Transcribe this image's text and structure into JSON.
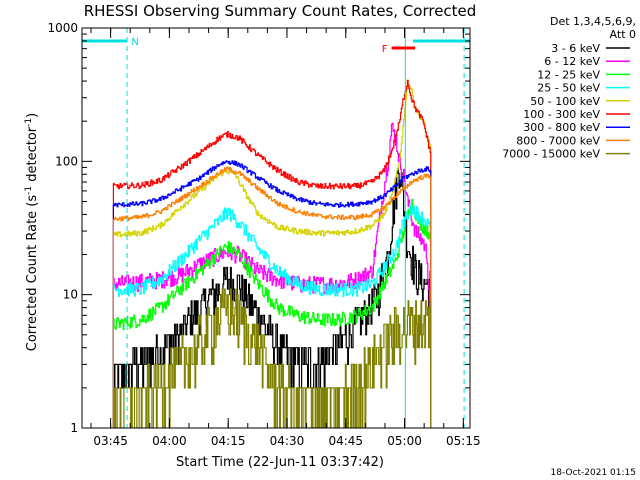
{
  "chart_data": {
    "type": "line",
    "title": "RHESSI Observing Summary Count Rates, Corrected",
    "xlabel": "Start Time (22-Jun-11 03:37:42)",
    "ylabel_main": "Corrected Count Rate (s",
    "ylabel_sup1": "-1",
    "ylabel_mid": " detector",
    "ylabel_sup2": "-1",
    "ylabel_end": ")",
    "yscale": "log",
    "ylim": [
      1,
      1000
    ],
    "xlim_minutes": [
      0,
      99
    ],
    "x_ticks": [
      {
        "label": "03:45",
        "minute": 7.3
      },
      {
        "label": "04:00",
        "minute": 22.3
      },
      {
        "label": "04:15",
        "minute": 37.3
      },
      {
        "label": "04:30",
        "minute": 52.3
      },
      {
        "label": "04:45",
        "minute": 67.3
      },
      {
        "label": "05:00",
        "minute": 82.3
      },
      {
        "label": "05:15",
        "minute": 97.3
      }
    ],
    "y_ticks": [
      {
        "label": "1",
        "value": 1
      },
      {
        "label": "10",
        "value": 10
      },
      {
        "label": "100",
        "value": 100
      },
      {
        "label": "1000",
        "value": 1000
      }
    ],
    "legend_header": [
      "Det 1,3,4,5,6,9,",
      "Att 0"
    ],
    "footer_timestamp": "18-Oct-2021 01:15",
    "flags": [
      {
        "label": "N",
        "color": "#00e0e0",
        "start_min": 0,
        "end_min": 11.5
      },
      {
        "label": "N",
        "color": "#00e0e0",
        "start_min": 84.5,
        "end_min": 99
      },
      {
        "label": "F",
        "color": "#ff0000",
        "start_min": 79,
        "end_min": 85
      }
    ],
    "vlines": [
      {
        "minute": 11.5,
        "color": "#00e0e0",
        "style": "dashed"
      },
      {
        "minute": 82.5,
        "color": "#00e0e0",
        "style": "solid"
      },
      {
        "minute": 97.5,
        "color": "#00e0e0",
        "style": "dashed"
      }
    ],
    "x_start": 8,
    "x_end": 89,
    "series": [
      {
        "name": "3 - 6 keV",
        "color": "#000000",
        "noise": 0.35,
        "quantize": true,
        "points": [
          [
            8,
            2.5
          ],
          [
            15,
            3
          ],
          [
            20,
            4
          ],
          [
            25,
            5
          ],
          [
            30,
            8
          ],
          [
            35,
            11
          ],
          [
            37,
            13
          ],
          [
            40,
            12
          ],
          [
            45,
            7
          ],
          [
            50,
            4
          ],
          [
            55,
            3
          ],
          [
            60,
            3
          ],
          [
            65,
            4
          ],
          [
            70,
            6
          ],
          [
            75,
            9
          ],
          [
            78,
            20
          ],
          [
            80,
            60
          ],
          [
            81,
            100
          ],
          [
            83,
            25
          ],
          [
            85,
            15
          ],
          [
            87,
            12
          ],
          [
            88,
            12
          ],
          [
            89,
            12
          ]
        ]
      },
      {
        "name": "6 - 12 keV",
        "color": "#ff00ff",
        "noise": 0.15,
        "points": [
          [
            8,
            12
          ],
          [
            15,
            12.5
          ],
          [
            20,
            13
          ],
          [
            25,
            14
          ],
          [
            30,
            17
          ],
          [
            35,
            20
          ],
          [
            37,
            21
          ],
          [
            40,
            20
          ],
          [
            45,
            15
          ],
          [
            50,
            13
          ],
          [
            55,
            12
          ],
          [
            60,
            12
          ],
          [
            65,
            12
          ],
          [
            70,
            13
          ],
          [
            74,
            15
          ],
          [
            76,
            40
          ],
          [
            78,
            100
          ],
          [
            79,
            180
          ],
          [
            80,
            150
          ],
          [
            81,
            100
          ],
          [
            82,
            80
          ],
          [
            83,
            50
          ],
          [
            85,
            30
          ],
          [
            87,
            25
          ],
          [
            88,
            20
          ],
          [
            89,
            5
          ]
        ]
      },
      {
        "name": "12 - 25 keV",
        "color": "#00ff00",
        "noise": 0.12,
        "points": [
          [
            8,
            6
          ],
          [
            15,
            6.5
          ],
          [
            20,
            8
          ],
          [
            25,
            11
          ],
          [
            30,
            15
          ],
          [
            35,
            21
          ],
          [
            37,
            23
          ],
          [
            40,
            20
          ],
          [
            45,
            12
          ],
          [
            50,
            8
          ],
          [
            55,
            7
          ],
          [
            60,
            6.5
          ],
          [
            65,
            6.5
          ],
          [
            70,
            7
          ],
          [
            74,
            8
          ],
          [
            77,
            12
          ],
          [
            80,
            18
          ],
          [
            82,
            30
          ],
          [
            84,
            50
          ],
          [
            86,
            35
          ],
          [
            88,
            30
          ],
          [
            89,
            28
          ]
        ]
      },
      {
        "name": "25 - 50 keV",
        "color": "#00ffff",
        "noise": 0.12,
        "points": [
          [
            8,
            11
          ],
          [
            15,
            11
          ],
          [
            20,
            13
          ],
          [
            25,
            18
          ],
          [
            30,
            26
          ],
          [
            35,
            36
          ],
          [
            37,
            42
          ],
          [
            40,
            35
          ],
          [
            45,
            22
          ],
          [
            50,
            15
          ],
          [
            55,
            12
          ],
          [
            60,
            11
          ],
          [
            65,
            11
          ],
          [
            70,
            11
          ],
          [
            74,
            12
          ],
          [
            77,
            16
          ],
          [
            80,
            22
          ],
          [
            82,
            35
          ],
          [
            84,
            45
          ],
          [
            86,
            40
          ],
          [
            88,
            35
          ],
          [
            89,
            30
          ]
        ]
      },
      {
        "name": "50 - 100 keV",
        "color": "#d4d400",
        "noise": 0.05,
        "points": [
          [
            8,
            28
          ],
          [
            15,
            29
          ],
          [
            20,
            33
          ],
          [
            25,
            45
          ],
          [
            30,
            60
          ],
          [
            35,
            80
          ],
          [
            37,
            85
          ],
          [
            39,
            80
          ],
          [
            42,
            55
          ],
          [
            45,
            40
          ],
          [
            50,
            32
          ],
          [
            55,
            30
          ],
          [
            60,
            29
          ],
          [
            65,
            29
          ],
          [
            70,
            30
          ],
          [
            74,
            33
          ],
          [
            77,
            40
          ],
          [
            79,
            55
          ],
          [
            81,
            100
          ],
          [
            82,
            200
          ],
          [
            83,
            400
          ],
          [
            84,
            350
          ],
          [
            85,
            250
          ],
          [
            87,
            200
          ],
          [
            88,
            150
          ],
          [
            89,
            130
          ]
        ]
      },
      {
        "name": "100 - 300 keV",
        "color": "#ff0000",
        "noise": 0.05,
        "points": [
          [
            8,
            65
          ],
          [
            15,
            66
          ],
          [
            20,
            72
          ],
          [
            25,
            90
          ],
          [
            30,
            115
          ],
          [
            35,
            150
          ],
          [
            37,
            160
          ],
          [
            40,
            150
          ],
          [
            45,
            110
          ],
          [
            50,
            85
          ],
          [
            55,
            70
          ],
          [
            60,
            65
          ],
          [
            65,
            65
          ],
          [
            70,
            65
          ],
          [
            74,
            70
          ],
          [
            77,
            85
          ],
          [
            79,
            120
          ],
          [
            81,
            200
          ],
          [
            82,
            300
          ],
          [
            83,
            400
          ],
          [
            84,
            300
          ],
          [
            85,
            250
          ],
          [
            87,
            200
          ],
          [
            88,
            150
          ],
          [
            89,
            110
          ]
        ]
      },
      {
        "name": "300 - 800 keV",
        "color": "#0000ff",
        "noise": 0.04,
        "points": [
          [
            8,
            47
          ],
          [
            15,
            48
          ],
          [
            20,
            52
          ],
          [
            25,
            62
          ],
          [
            30,
            75
          ],
          [
            35,
            95
          ],
          [
            37,
            100
          ],
          [
            40,
            95
          ],
          [
            45,
            75
          ],
          [
            50,
            60
          ],
          [
            55,
            52
          ],
          [
            60,
            48
          ],
          [
            65,
            47
          ],
          [
            70,
            48
          ],
          [
            74,
            50
          ],
          [
            77,
            55
          ],
          [
            80,
            65
          ],
          [
            82,
            75
          ],
          [
            84,
            80
          ],
          [
            86,
            85
          ],
          [
            88,
            88
          ],
          [
            89,
            85
          ]
        ]
      },
      {
        "name": "800 - 7000 keV",
        "color": "#ff8000",
        "noise": 0.04,
        "points": [
          [
            8,
            37
          ],
          [
            15,
            38
          ],
          [
            20,
            42
          ],
          [
            25,
            52
          ],
          [
            30,
            65
          ],
          [
            35,
            82
          ],
          [
            37,
            88
          ],
          [
            40,
            82
          ],
          [
            45,
            62
          ],
          [
            50,
            48
          ],
          [
            55,
            42
          ],
          [
            60,
            39
          ],
          [
            65,
            38
          ],
          [
            70,
            38
          ],
          [
            74,
            40
          ],
          [
            77,
            45
          ],
          [
            80,
            55
          ],
          [
            82,
            62
          ],
          [
            84,
            70
          ],
          [
            86,
            75
          ],
          [
            88,
            78
          ],
          [
            89,
            78
          ]
        ]
      },
      {
        "name": "7000 - 15000 keV",
        "color": "#808000",
        "noise": 0.5,
        "quantize": true,
        "points": [
          [
            8,
            1.5
          ],
          [
            15,
            1.6
          ],
          [
            20,
            2.2
          ],
          [
            25,
            3
          ],
          [
            30,
            4.5
          ],
          [
            35,
            7
          ],
          [
            37,
            8
          ],
          [
            40,
            7
          ],
          [
            45,
            4
          ],
          [
            50,
            2
          ],
          [
            55,
            1.5
          ],
          [
            60,
            1.5
          ],
          [
            65,
            1.6
          ],
          [
            70,
            2.2
          ],
          [
            75,
            3.5
          ],
          [
            78,
            4.5
          ],
          [
            80,
            5.5
          ],
          [
            83,
            6
          ],
          [
            86,
            6.5
          ],
          [
            88,
            6.5
          ],
          [
            89,
            6.5
          ]
        ]
      }
    ]
  }
}
